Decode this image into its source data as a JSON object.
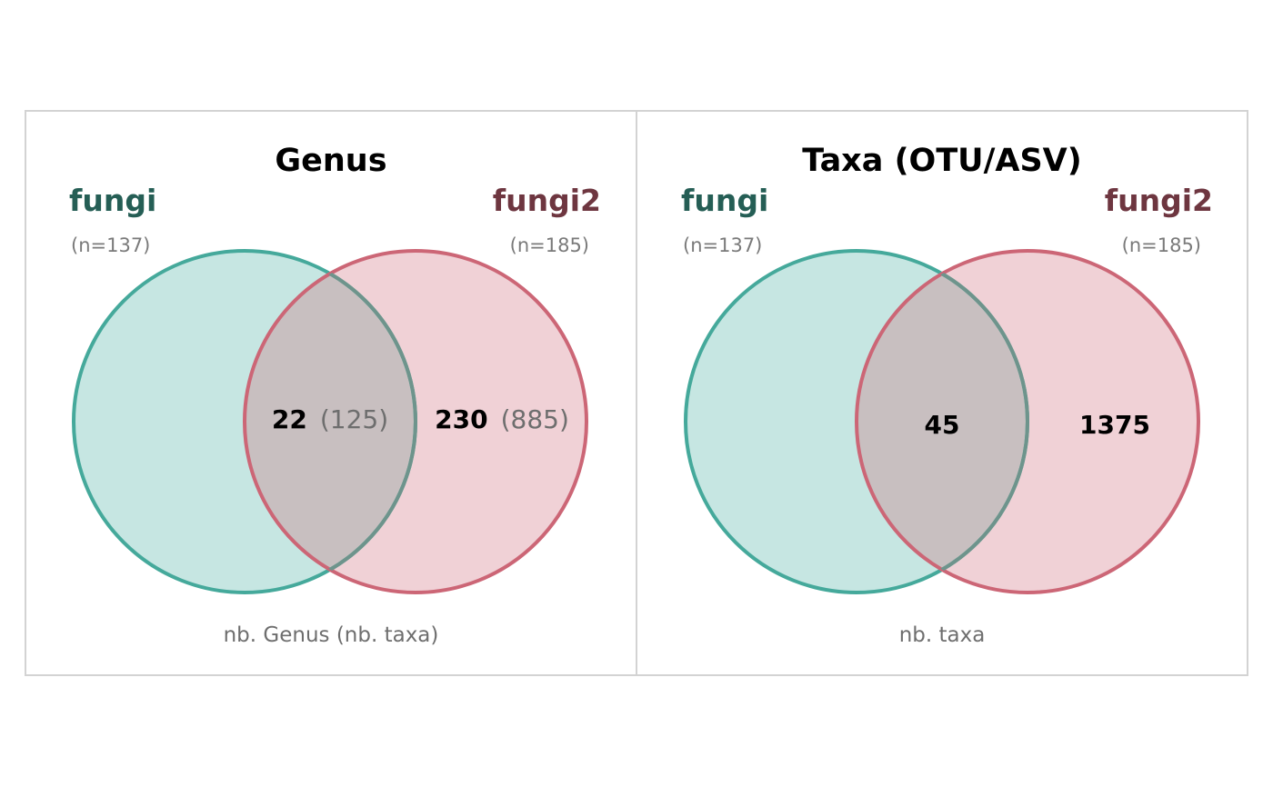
{
  "colors": {
    "fungi": "#45a99b",
    "fungi_fill": "#c6e6e2",
    "fungi_label": "#255e55",
    "fungi2": "#cc6676",
    "fungi2_fill": "#f0d1d6",
    "fungi2_label": "#6e3640",
    "overlap_fill": "#c8bfc0",
    "overlap_stroke": "#6e948c"
  },
  "panels": [
    {
      "title": "Genus",
      "sets": [
        {
          "name": "fungi",
          "n_label": "(n=137)"
        },
        {
          "name": "fungi2",
          "n_label": "(n=185)"
        }
      ],
      "regions": {
        "overlap": {
          "main": "22",
          "sub": "(125)"
        },
        "fungi2_only": {
          "main": "230",
          "sub": "(885)"
        }
      },
      "caption": "nb. Genus (nb. taxa)"
    },
    {
      "title": "Taxa (OTU/ASV)",
      "sets": [
        {
          "name": "fungi",
          "n_label": "(n=137)"
        },
        {
          "name": "fungi2",
          "n_label": "(n=185)"
        }
      ],
      "regions": {
        "overlap": {
          "main": "45",
          "sub": ""
        },
        "fungi2_only": {
          "main": "1375",
          "sub": ""
        }
      },
      "caption": "nb. taxa"
    }
  ]
}
